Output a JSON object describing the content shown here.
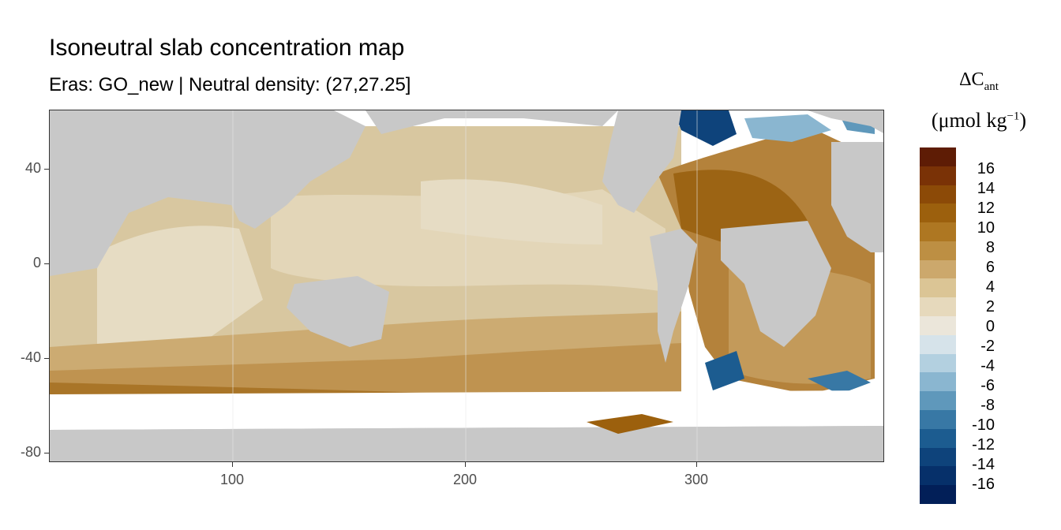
{
  "title": "Isoneutral slab concentration map",
  "subtitle": "Eras: GO_new | Neutral density: (27,27.25]",
  "legend": {
    "title_main": "ΔC",
    "title_sub": "ant",
    "unit_prefix": "(μmol kg",
    "unit_sup": "−1",
    "unit_suffix": ")",
    "labels": [
      "16",
      "14",
      "12",
      "10",
      "8",
      "6",
      "4",
      "2",
      "0",
      "-2",
      "-4",
      "-6",
      "-8",
      "-10",
      "-12",
      "-14",
      "-16"
    ],
    "colors": [
      "#5e1c05",
      "#7a3206",
      "#8c4a07",
      "#9c600d",
      "#ae7722",
      "#bd8f43",
      "#cca86c",
      "#dbc595",
      "#e6d9bc",
      "#ebe6da",
      "#d6e3ea",
      "#b3d0e0",
      "#8ab6d0",
      "#5f98bb",
      "#3878a5",
      "#1c5c90",
      "#0e437b",
      "#06306a",
      "#021f58"
    ]
  },
  "axes": {
    "x_ticks": [
      "100",
      "200",
      "300"
    ],
    "y_ticks": [
      "40",
      "0",
      "-40",
      "-80"
    ]
  },
  "colors": {
    "land": "#c8c8c8",
    "ice": "#ffffff",
    "panel_border": "#333333"
  }
}
